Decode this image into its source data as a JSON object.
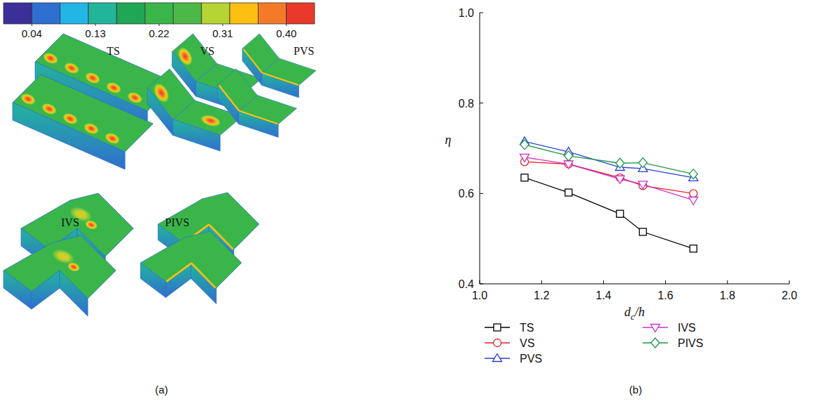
{
  "panel_a": {
    "caption": "(a)",
    "labels": [
      "TS",
      "VS",
      "PVS",
      "IVS",
      "PIVS"
    ],
    "colorbar": {
      "range": [
        0,
        0.44
      ],
      "ticks": [
        0.04,
        0.13,
        0.22,
        0.31,
        {
          "value": 0.4,
          "label": "0.40"
        }
      ],
      "colors": [
        "#3b2f9a",
        "#2f6fd0",
        "#22b5e6",
        "#23b59a",
        "#1fa755",
        "#3ab54a",
        "#4cb848",
        "#b6d433",
        "#fdc010",
        "#f47a2a",
        "#e8392b"
      ]
    }
  },
  "chart_data": {
    "type": "line",
    "caption": "(b)",
    "xlabel": "dc/h",
    "ylabel": "η",
    "x": [
      1.145,
      1.287,
      1.453,
      1.527,
      1.69
    ],
    "xlim": [
      1,
      2
    ],
    "xticks": [
      {
        "value": 1,
        "label": "1.0"
      },
      1.2,
      1.4,
      1.6,
      1.8,
      {
        "value": 2,
        "label": "2.0"
      }
    ],
    "ylim": [
      0.4,
      1
    ],
    "yticks": [
      0.4,
      0.6,
      0.8,
      {
        "value": 1,
        "label": "1.0"
      }
    ],
    "legend": "bottom",
    "series": [
      {
        "name": "TS",
        "color": "#000000",
        "marker": "square",
        "values": [
          0.635,
          0.602,
          0.555,
          0.515,
          0.478
        ]
      },
      {
        "name": "VS",
        "color": "#e8202a",
        "marker": "circle",
        "values": [
          0.67,
          0.665,
          0.635,
          0.617,
          0.6
        ]
      },
      {
        "name": "PVS",
        "color": "#2a3fd6",
        "marker": "triangle-up",
        "values": [
          0.715,
          0.692,
          0.658,
          0.655,
          0.635
        ]
      },
      {
        "name": "IVS",
        "color": "#cc33cc",
        "marker": "triangle-down",
        "values": [
          0.68,
          0.665,
          0.632,
          0.62,
          0.585
        ]
      },
      {
        "name": "PIVS",
        "color": "#1f9a4a",
        "marker": "diamond",
        "values": [
          0.708,
          0.683,
          0.667,
          0.668,
          0.643
        ]
      }
    ]
  }
}
